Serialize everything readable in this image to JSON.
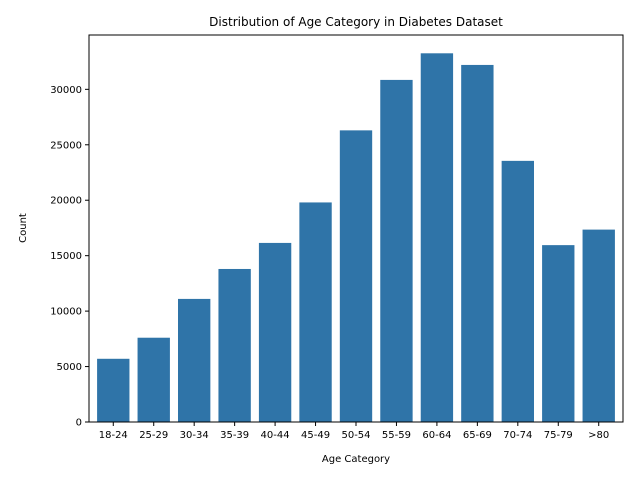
{
  "chart_data": {
    "type": "bar",
    "title": "Distribution of Age Category in Diabetes Dataset",
    "xlabel": "Age Category",
    "ylabel": "Count",
    "categories": [
      "18-24",
      "25-29",
      "30-34",
      "35-39",
      "40-44",
      "45-49",
      "50-54",
      "55-59",
      "60-64",
      "65-69",
      "70-74",
      "75-79",
      ">80"
    ],
    "values": [
      5700,
      7600,
      11100,
      13800,
      16150,
      19800,
      26300,
      30850,
      33250,
      32200,
      23550,
      15950,
      17350
    ],
    "ylim": [
      0,
      34900
    ],
    "yticks": [
      0,
      5000,
      10000,
      15000,
      20000,
      25000,
      30000
    ],
    "grid": false,
    "legend": "none",
    "bar_color": "#2f74a8"
  }
}
